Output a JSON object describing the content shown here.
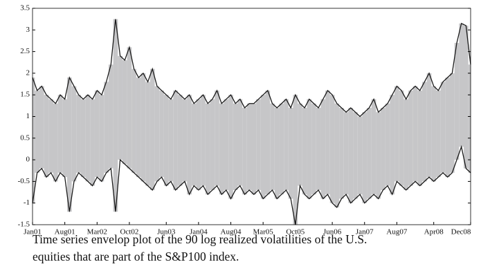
{
  "chart_data": {
    "type": "envelope",
    "caption": [
      "Time series envelop plot of the 90 log realized volatilities of the U.S.",
      "equities that are part of the S&P100 index."
    ],
    "categories": [
      "Jan01",
      null,
      null,
      null,
      null,
      null,
      null,
      "Aug01",
      null,
      null,
      null,
      null,
      null,
      null,
      "Mar02",
      null,
      null,
      null,
      null,
      null,
      null,
      "Oct02",
      null,
      null,
      null,
      null,
      null,
      null,
      null,
      "Jun03",
      null,
      null,
      null,
      null,
      null,
      null,
      "Jan04",
      null,
      null,
      null,
      null,
      null,
      null,
      "Aug04",
      null,
      null,
      null,
      null,
      null,
      null,
      "Mar05",
      null,
      null,
      null,
      null,
      null,
      null,
      "Oct05",
      null,
      null,
      null,
      null,
      null,
      null,
      null,
      "Jun06",
      null,
      null,
      null,
      null,
      null,
      null,
      "Jan07",
      null,
      null,
      null,
      null,
      null,
      null,
      "Aug07",
      null,
      null,
      null,
      null,
      null,
      null,
      null,
      "Apr08",
      null,
      null,
      null,
      null,
      null,
      null,
      null,
      "Dec08"
    ],
    "fill_color": "#c6c6c8",
    "series": [
      {
        "color": "#1a1a1a",
        "values": [
          1.9,
          1.6,
          1.7,
          1.5,
          1.4,
          1.3,
          1.5,
          1.4,
          1.9,
          1.7,
          1.5,
          1.4,
          1.5,
          1.4,
          1.6,
          1.5,
          1.8,
          2.2,
          3.25,
          2.4,
          2.3,
          2.6,
          2.1,
          1.9,
          2.0,
          1.8,
          2.1,
          1.7,
          1.6,
          1.5,
          1.4,
          1.6,
          1.5,
          1.4,
          1.5,
          1.3,
          1.4,
          1.5,
          1.3,
          1.4,
          1.6,
          1.3,
          1.4,
          1.5,
          1.3,
          1.4,
          1.2,
          1.3,
          1.3,
          1.4,
          1.5,
          1.6,
          1.3,
          1.2,
          1.3,
          1.4,
          1.2,
          1.5,
          1.3,
          1.2,
          1.4,
          1.3,
          1.2,
          1.4,
          1.6,
          1.5,
          1.3,
          1.2,
          1.1,
          1.2,
          1.1,
          1.0,
          1.1,
          1.2,
          1.4,
          1.1,
          1.2,
          1.3,
          1.5,
          1.7,
          1.6,
          1.4,
          1.6,
          1.7,
          1.6,
          1.8,
          2.0,
          1.7,
          1.6,
          1.8,
          1.9,
          2.0,
          2.7,
          3.15,
          3.1,
          2.2
        ]
      },
      {
        "color": "#1a1a1a",
        "values": [
          -1.0,
          -0.3,
          -0.2,
          -0.4,
          -0.3,
          -0.5,
          -0.3,
          -0.4,
          -1.2,
          -0.5,
          -0.3,
          -0.4,
          -0.5,
          -0.6,
          -0.4,
          -0.5,
          -0.3,
          -0.2,
          -1.2,
          0.0,
          -0.1,
          -0.2,
          -0.3,
          -0.4,
          -0.5,
          -0.6,
          -0.7,
          -0.5,
          -0.4,
          -0.6,
          -0.5,
          -0.7,
          -0.6,
          -0.5,
          -0.8,
          -0.6,
          -0.7,
          -0.6,
          -0.8,
          -0.7,
          -0.6,
          -0.8,
          -0.7,
          -0.9,
          -0.7,
          -0.6,
          -0.8,
          -0.7,
          -0.8,
          -0.7,
          -0.9,
          -0.8,
          -0.7,
          -0.9,
          -0.8,
          -0.7,
          -0.9,
          -1.5,
          -0.6,
          -0.8,
          -0.9,
          -0.8,
          -0.7,
          -0.9,
          -0.8,
          -1.0,
          -1.1,
          -0.9,
          -0.8,
          -1.0,
          -0.9,
          -0.8,
          -1.0,
          -0.9,
          -0.8,
          -0.9,
          -0.7,
          -0.6,
          -0.8,
          -0.5,
          -0.6,
          -0.7,
          -0.6,
          -0.5,
          -0.6,
          -0.5,
          -0.4,
          -0.5,
          -0.4,
          -0.3,
          -0.4,
          -0.3,
          0.0,
          0.3,
          -0.2,
          -0.3
        ]
      }
    ],
    "ylim": [
      -1.5,
      3.5
    ],
    "yticks": [
      -1.5,
      -1,
      -0.5,
      0,
      0.5,
      1,
      1.5,
      2,
      2.5,
      3,
      3.5
    ]
  }
}
